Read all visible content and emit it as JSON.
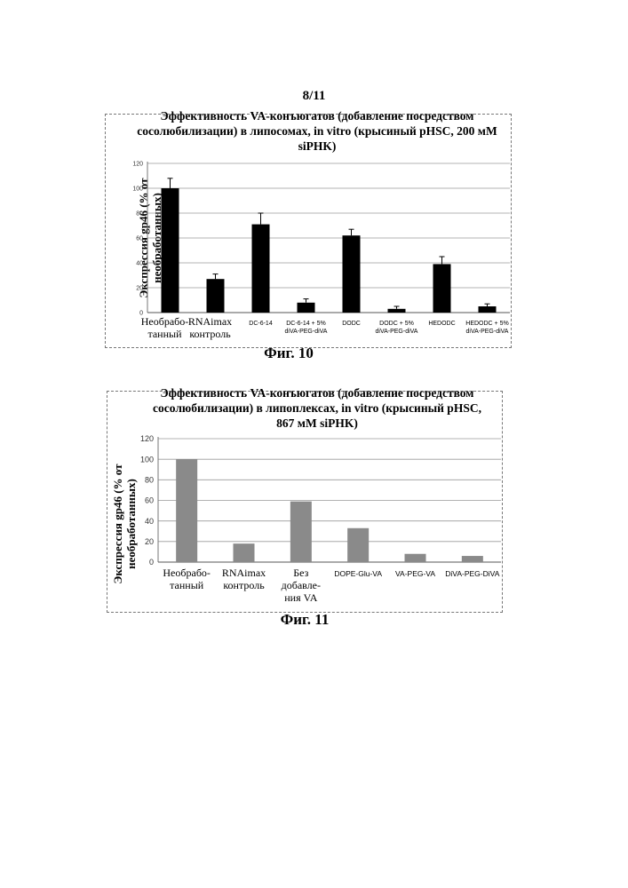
{
  "page": {
    "number": "8/11"
  },
  "figures": [
    {
      "caption": "Фиг. 10"
    },
    {
      "caption": "Фиг. 11"
    }
  ],
  "chart_data": [
    {
      "type": "bar",
      "title": "Эффективность VA-конъюгатов (добавление посредством\nсосолюбилизации) в липосомах, in vitro (крысиный pHSC, 200 мМ\nsiPHK)",
      "ylabel": "Экспрессия gp46 (% от\nнеобработанных)",
      "xlabel": "",
      "ylim": [
        0,
        120
      ],
      "yticks": [
        "0",
        "20",
        "40",
        "60",
        "80",
        "100",
        "120"
      ],
      "categories": [
        [
          "Необрабо-",
          "танный"
        ],
        [
          "RNAimax",
          "контроль"
        ],
        [
          "DC-6-14"
        ],
        [
          "DC-6-14 + 5%",
          "diVA-PEG-diVA"
        ],
        [
          "DODC"
        ],
        [
          "DODC + 5%",
          "diVA-PEG-diVA"
        ],
        [
          "HEDODC"
        ],
        [
          "HEDODC + 5%",
          "diVA-PEG-diVA"
        ]
      ],
      "values": [
        100,
        27,
        71,
        8,
        62,
        3,
        39,
        5
      ],
      "errors": [
        8,
        4,
        9,
        3,
        5,
        2,
        6,
        2
      ],
      "grid": true,
      "bar_color": "#000000"
    },
    {
      "type": "bar",
      "title": "Эффективность VA-конъюгатов (добавление посредством\nсосолюбилизации) в липоплексах, in vitro (крысиный pHSC,\n867 мМ siPHK)",
      "ylabel": "Экспрессия gp46 (% от\nнеобработанных)",
      "xlabel": "",
      "ylim": [
        0,
        120
      ],
      "yticks": [
        "0",
        "20",
        "40",
        "60",
        "80",
        "100",
        "120"
      ],
      "categories": [
        [
          "Необрабо-",
          "танный"
        ],
        [
          "RNAimax",
          "контроль"
        ],
        [
          "Без",
          "добавле-",
          "ния VA"
        ],
        [
          "DOPE-Glu-VA"
        ],
        [
          "VA-PEG-VA"
        ],
        [
          "DiVA-PEG-DiVA"
        ]
      ],
      "values": [
        100,
        18,
        59,
        33,
        8,
        6
      ],
      "grid": true,
      "bar_color": "#8a8a8a"
    }
  ]
}
